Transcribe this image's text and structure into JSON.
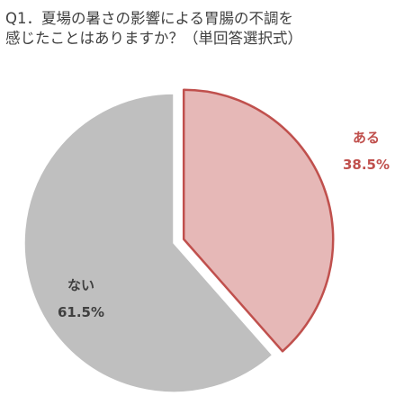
{
  "title_lines": [
    "Q1．夏場の暑さの影響による胃腸の不調を",
    "感じたことはありますか？（単回答選択式）"
  ],
  "chart_data": {
    "type": "pie",
    "title": "Q1．夏場の暑さの影響による胃腸の不調を感じたことはありますか？（単回答選択式）",
    "slices": [
      {
        "label": "ある",
        "value": 38.5,
        "value_text": "38.5%",
        "fill": "#e6b8b7",
        "stroke": "#c0504d",
        "label_color": "#c0504d",
        "exploded": true
      },
      {
        "label": "ない",
        "value": 61.5,
        "value_text": "61.5%",
        "fill": "#bfbfbf",
        "stroke": "#ffffff",
        "label_color": "#404040",
        "exploded": false
      }
    ],
    "legend": "none"
  }
}
